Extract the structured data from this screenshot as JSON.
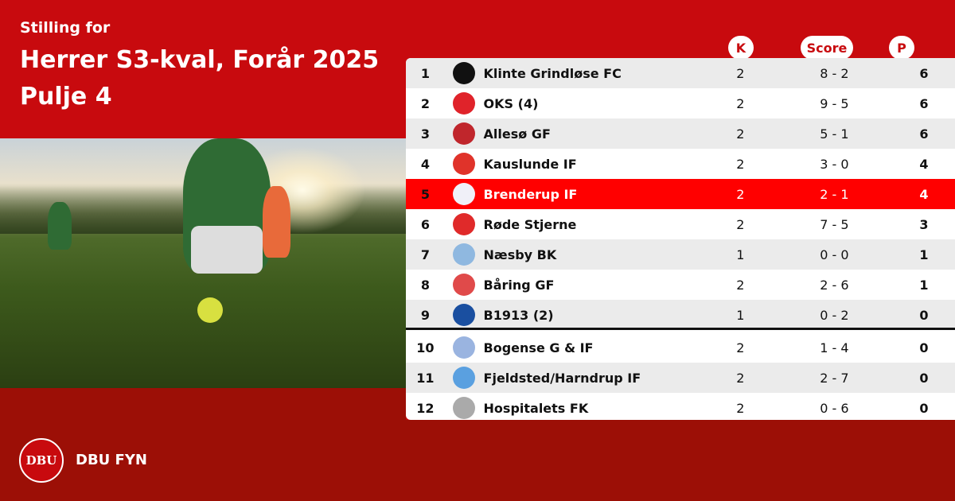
{
  "header": {
    "subtitle": "Stilling for",
    "title": "Herrer S3-kval, Forår 2025",
    "pool": "Pulje 4"
  },
  "columns": {
    "k": "K",
    "score": "Score",
    "p": "P"
  },
  "colors": {
    "primary_red": "#c80a0e",
    "dark_red": "#9c0f06",
    "highlight": "#ff0000",
    "row_alt": "#ebebeb"
  },
  "rows": [
    {
      "pos": "1",
      "team": "Klinte Grindløse FC",
      "k": "2",
      "score": "8 - 2",
      "p": "6",
      "logo_color": "#111111"
    },
    {
      "pos": "2",
      "team": "OKS (4)",
      "k": "2",
      "score": "9 - 5",
      "p": "6",
      "logo_color": "#e0232a"
    },
    {
      "pos": "3",
      "team": "Allesø GF",
      "k": "2",
      "score": "5 - 1",
      "p": "6",
      "logo_color": "#c0262c"
    },
    {
      "pos": "4",
      "team": "Kauslunde IF",
      "k": "2",
      "score": "3 - 0",
      "p": "4",
      "logo_color": "#e0332a"
    },
    {
      "pos": "5",
      "team": "Brenderup IF",
      "k": "2",
      "score": "2 - 1",
      "p": "4",
      "logo_color": "#f0f0f8",
      "highlighted": true
    },
    {
      "pos": "6",
      "team": "Røde Stjerne",
      "k": "2",
      "score": "7 - 5",
      "p": "3",
      "logo_color": "#e02a2a"
    },
    {
      "pos": "7",
      "team": "Næsby BK",
      "k": "1",
      "score": "0 - 0",
      "p": "1",
      "logo_color": "#8fb8e0"
    },
    {
      "pos": "8",
      "team": "Båring GF",
      "k": "2",
      "score": "2 - 6",
      "p": "1",
      "logo_color": "#e04a4a"
    },
    {
      "pos": "9",
      "team": "B1913 (2)",
      "k": "1",
      "score": "0 - 2",
      "p": "0",
      "logo_color": "#1a4fa0"
    },
    {
      "pos": "10",
      "team": "Bogense G & IF",
      "k": "2",
      "score": "1 - 4",
      "p": "0",
      "logo_color": "#9ab4e0"
    },
    {
      "pos": "11",
      "team": "Fjeldsted/Harndrup IF",
      "k": "2",
      "score": "2 - 7",
      "p": "0",
      "logo_color": "#5aa0e0"
    },
    {
      "pos": "12",
      "team": "Hospitalets FK",
      "k": "2",
      "score": "0 - 6",
      "p": "0",
      "logo_color": "#aaaaaa"
    }
  ],
  "footer": {
    "brand": "DBU FYN",
    "logo_text": "DBU"
  }
}
